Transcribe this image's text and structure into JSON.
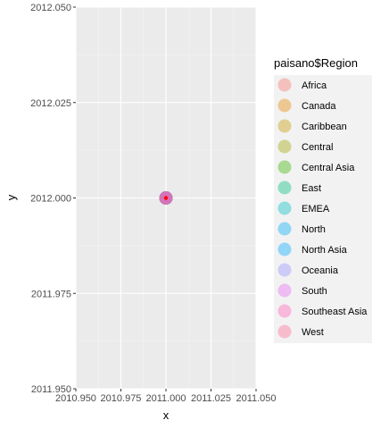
{
  "chart_data": {
    "type": "scatter",
    "xlabel": "x",
    "ylabel": "y",
    "xlim": [
      2010.95,
      2011.05
    ],
    "ylim": [
      2011.95,
      2012.05
    ],
    "x_ticks": [
      2010.95,
      2010.975,
      2011.0,
      2011.025,
      2011.05
    ],
    "x_tick_labels": [
      "2010.950",
      "2010.975",
      "2011.000",
      "2011.025",
      "2011.050"
    ],
    "y_ticks": [
      2011.95,
      2011.975,
      2012.0,
      2012.025,
      2012.05
    ],
    "y_tick_labels": [
      "2011.950",
      "2011.975",
      "2012.000",
      "2012.025",
      "2012.050"
    ],
    "grid": true,
    "legend_position": "right",
    "legend_title": "paisano$Region",
    "series": [
      {
        "name": "Africa",
        "color": "#F8766D",
        "x": [
          2011.0
        ],
        "y": [
          2012.0
        ]
      },
      {
        "name": "Canada",
        "color": "#E58700",
        "x": [
          2011.0
        ],
        "y": [
          2012.0
        ]
      },
      {
        "name": "Caribbean",
        "color": "#C99800",
        "x": [
          2011.0
        ],
        "y": [
          2012.0
        ]
      },
      {
        "name": "Central",
        "color": "#A3A500",
        "x": [
          2011.0
        ],
        "y": [
          2012.0
        ]
      },
      {
        "name": "Central Asia",
        "color": "#39B600",
        "x": [
          2011.0
        ],
        "y": [
          2012.0
        ]
      },
      {
        "name": "East",
        "color": "#00BF7D",
        "x": [
          2011.0
        ],
        "y": [
          2012.0
        ]
      },
      {
        "name": "EMEA",
        "color": "#00BFC4",
        "x": [
          2011.0
        ],
        "y": [
          2012.0
        ]
      },
      {
        "name": "North",
        "color": "#00B0F6",
        "x": [
          2011.0
        ],
        "y": [
          2012.0
        ]
      },
      {
        "name": "North Asia",
        "color": "#00A9FF",
        "x": [
          2011.0
        ],
        "y": [
          2012.0
        ]
      },
      {
        "name": "Oceania",
        "color": "#9590FF",
        "x": [
          2011.0
        ],
        "y": [
          2012.0
        ]
      },
      {
        "name": "South",
        "color": "#E76BF3",
        "x": [
          2011.0
        ],
        "y": [
          2012.0
        ]
      },
      {
        "name": "Southeast Asia",
        "color": "#FF62BC",
        "x": [
          2011.0
        ],
        "y": [
          2012.0
        ]
      },
      {
        "name": "West",
        "color": "#FF6C91",
        "x": [
          2011.0
        ],
        "y": [
          2012.0
        ]
      }
    ],
    "highlight_point": {
      "x": 2011.0,
      "y": 2012.0,
      "color": "#FF0000"
    },
    "point_alpha": 0.4
  }
}
